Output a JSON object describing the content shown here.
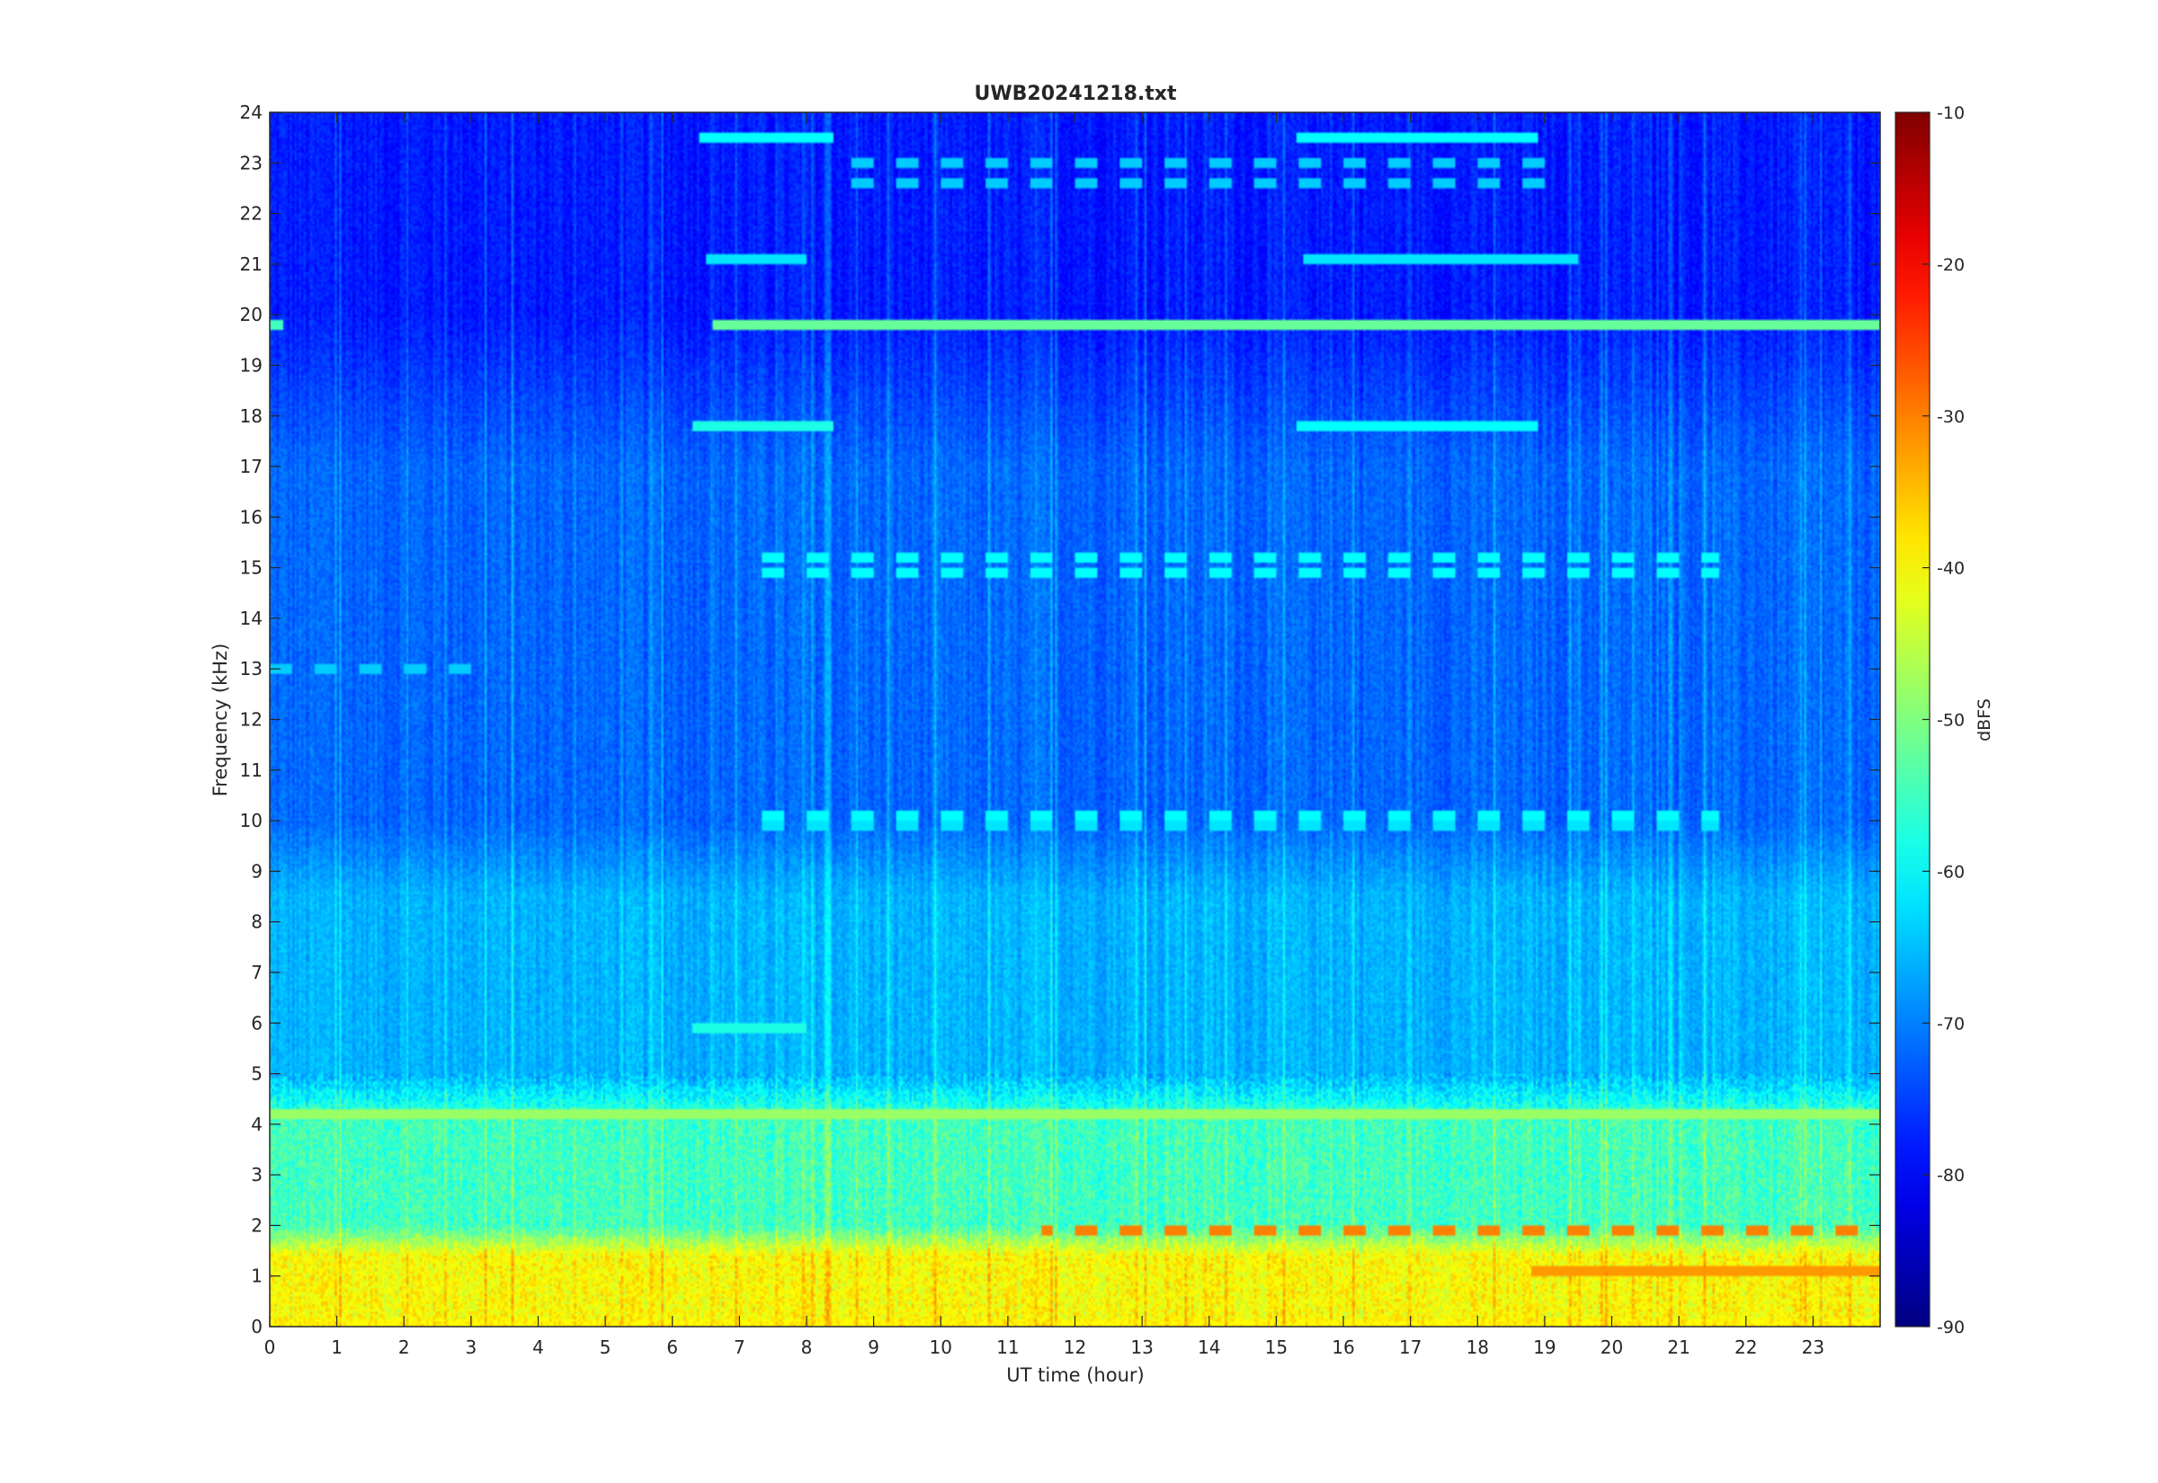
{
  "chart_data": {
    "type": "heatmap",
    "title": "UWB20241218.txt",
    "xlabel": "UT time (hour)",
    "ylabel": "Frequency (kHz)",
    "xlim": [
      0,
      24
    ],
    "ylim": [
      0,
      24
    ],
    "xticks": [
      0,
      1,
      2,
      3,
      4,
      5,
      6,
      7,
      8,
      9,
      10,
      11,
      12,
      13,
      14,
      15,
      16,
      17,
      18,
      19,
      20,
      21,
      22,
      23
    ],
    "yticks": [
      0,
      1,
      2,
      3,
      4,
      5,
      6,
      7,
      8,
      9,
      10,
      11,
      12,
      13,
      14,
      15,
      16,
      17,
      18,
      19,
      20,
      21,
      22,
      23,
      24
    ],
    "colormap": "jet",
    "colorbar": {
      "label": "dBFS",
      "clim": [
        -90,
        -10
      ],
      "ticks": [
        -90,
        -80,
        -70,
        -60,
        -50,
        -40,
        -30,
        -20,
        -10
      ]
    },
    "background_levels_dbfs": [
      {
        "freq_khz": [
          0,
          2
        ],
        "level": -40
      },
      {
        "freq_khz": [
          2,
          5
        ],
        "level": -55
      },
      {
        "freq_khz": [
          5,
          10
        ],
        "level": -66
      },
      {
        "freq_khz": [
          10,
          20
        ],
        "level": -72
      },
      {
        "freq_khz": [
          20,
          24
        ],
        "level": -78
      }
    ],
    "features": [
      {
        "kind": "tone",
        "freq_khz": 19.8,
        "t_start": 6.6,
        "t_end": 24,
        "level": -52
      },
      {
        "kind": "tone",
        "freq_khz": 19.8,
        "t_start": 0,
        "t_end": 0.2,
        "level": -55
      },
      {
        "kind": "tone",
        "freq_khz": 17.8,
        "t_start": 6.3,
        "t_end": 8.4,
        "level": -58
      },
      {
        "kind": "tone",
        "freq_khz": 17.8,
        "t_start": 15.3,
        "t_end": 18.9,
        "level": -60
      },
      {
        "kind": "tone",
        "freq_khz": 23.5,
        "t_start": 6.4,
        "t_end": 8.4,
        "level": -60
      },
      {
        "kind": "tone",
        "freq_khz": 23.5,
        "t_start": 15.3,
        "t_end": 18.9,
        "level": -60
      },
      {
        "kind": "tone",
        "freq_khz": 21.1,
        "t_start": 6.5,
        "t_end": 8.0,
        "level": -62
      },
      {
        "kind": "tone",
        "freq_khz": 21.1,
        "t_start": 15.4,
        "t_end": 19.5,
        "level": -62
      },
      {
        "kind": "tone",
        "freq_khz": 5.9,
        "t_start": 6.3,
        "t_end": 8.0,
        "level": -58
      },
      {
        "kind": "tone",
        "freq_khz": 4.2,
        "t_start": 0,
        "t_end": 24,
        "level": -48
      },
      {
        "kind": "tone",
        "freq_khz": 1.1,
        "t_start": 18.8,
        "t_end": 24,
        "level": -32
      },
      {
        "kind": "tone",
        "freq_khz": 0.05,
        "t_start": 0,
        "t_end": 24,
        "level": -40
      },
      {
        "kind": "dashed",
        "freq_khz": 15.2,
        "t_start": 7.2,
        "t_end": 21.6,
        "level": -60
      },
      {
        "kind": "dashed",
        "freq_khz": 14.9,
        "t_start": 7.2,
        "t_end": 21.6,
        "level": -60
      },
      {
        "kind": "dashed",
        "freq_khz": 10.1,
        "t_start": 7.2,
        "t_end": 21.6,
        "level": -60
      },
      {
        "kind": "dashed",
        "freq_khz": 9.9,
        "t_start": 7.2,
        "t_end": 21.6,
        "level": -62
      },
      {
        "kind": "dashed",
        "freq_khz": 23.0,
        "t_start": 8.5,
        "t_end": 19.0,
        "level": -64
      },
      {
        "kind": "dashed",
        "freq_khz": 22.6,
        "t_start": 8.5,
        "t_end": 19.0,
        "level": -64
      },
      {
        "kind": "dashed",
        "freq_khz": 1.9,
        "t_start": 11.5,
        "t_end": 24,
        "level": -30
      },
      {
        "kind": "dashed",
        "freq_khz": 13.0,
        "t_start": 0,
        "t_end": 3.0,
        "level": -64
      }
    ]
  }
}
